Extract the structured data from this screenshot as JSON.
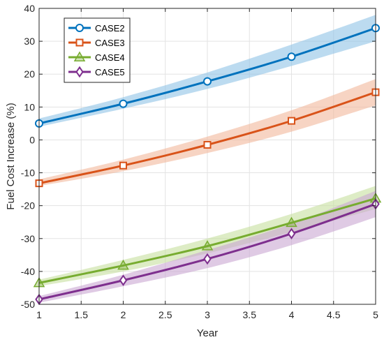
{
  "chart_data": {
    "type": "line",
    "title": "",
    "xlabel": "Year",
    "ylabel": "Fuel Cost Increase (%)",
    "xlim": [
      1,
      5
    ],
    "ylim": [
      -50,
      40
    ],
    "xticks": [
      1,
      1.5,
      2,
      2.5,
      3,
      3.5,
      4,
      4.5,
      5
    ],
    "yticks": [
      -50,
      -40,
      -30,
      -20,
      -10,
      0,
      10,
      20,
      30,
      40
    ],
    "xtick_labels": [
      "1",
      "1.5",
      "2",
      "2.5",
      "3",
      "3.5",
      "4",
      "4.5",
      "5"
    ],
    "ytick_labels": [
      "-50",
      "-40",
      "-30",
      "-20",
      "-10",
      "0",
      "10",
      "20",
      "30",
      "40"
    ],
    "grid": true,
    "legend_position": "top-left",
    "x": [
      1,
      2,
      3,
      4,
      5
    ],
    "series": [
      {
        "name": "CASE2",
        "marker": "circle",
        "color": "#0072BD",
        "band_color": "#8fc3e6",
        "values": [
          5,
          11,
          17.8,
          25.3,
          34
        ],
        "band_upper": [
          6.5,
          13,
          20.5,
          29,
          38
        ],
        "band_lower": [
          4,
          9.5,
          15.5,
          22.5,
          30
        ]
      },
      {
        "name": "CASE3",
        "marker": "square",
        "color": "#D95319",
        "band_color": "#f2b79b",
        "values": [
          -13.2,
          -7.8,
          -1.5,
          5.8,
          14.5
        ],
        "band_upper": [
          -12,
          -6,
          1,
          9,
          18.5
        ],
        "band_lower": [
          -14,
          -9.5,
          -4,
          2.5,
          10.5
        ]
      },
      {
        "name": "CASE4",
        "marker": "triangle",
        "color": "#77AC30",
        "band_color": "#c6df9e",
        "values": [
          -43.5,
          -38.2,
          -32.3,
          -25.2,
          -17.8
        ],
        "band_upper": [
          -42.5,
          -36.5,
          -30,
          -22.5,
          -14
        ],
        "band_lower": [
          -44.5,
          -40,
          -34.5,
          -28,
          -21
        ]
      },
      {
        "name": "CASE5",
        "marker": "diamond",
        "color": "#7E2F8E",
        "band_color": "#c9a7d2",
        "values": [
          -48.5,
          -42.7,
          -36.2,
          -28.5,
          -19.5
        ],
        "band_upper": [
          -47.5,
          -41,
          -33.5,
          -25.5,
          -15.5
        ],
        "band_lower": [
          -49.5,
          -44.5,
          -39,
          -32,
          -23.5
        ]
      }
    ]
  }
}
